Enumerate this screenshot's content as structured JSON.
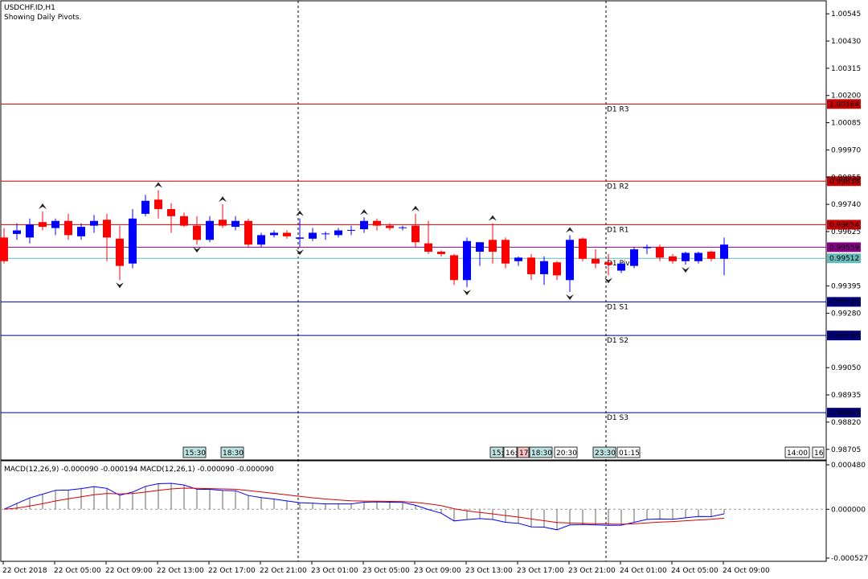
{
  "header": {
    "symbol": "USDCHF.ID,H1",
    "indicator_note": "Showing Daily Pivots."
  },
  "colors": {
    "bull": "#0000ff",
    "bear": "#ff0000",
    "resistance": "#cc0000",
    "support": "#000080",
    "pivot": "#66bbbb",
    "ma_line": "#880088",
    "macd_line": "#0000ff",
    "signal_line": "#dd0000"
  },
  "price_axis": {
    "labels": [
      "1.00545",
      "1.00430",
      "1.00315",
      "1.00200",
      "1.00085",
      "0.99970",
      "0.99855",
      "0.99740",
      "0.99625",
      "0.99395",
      "0.99280",
      "0.99050",
      "0.98935",
      "0.98820",
      "0.98705"
    ],
    "min": 0.9866,
    "max": 1.006
  },
  "pivots": [
    {
      "id": "r3",
      "label": "D1 R3",
      "price": 1.00164,
      "tag": "1.00164",
      "kind": "resistance"
    },
    {
      "id": "r2",
      "label": "D1 R2",
      "price": 0.99838,
      "tag": "0.99838",
      "kind": "resistance"
    },
    {
      "id": "r1",
      "label": "D1 R1",
      "price": 0.99654,
      "tag": "0.99654",
      "kind": "resistance"
    },
    {
      "id": "pivot",
      "label": "D1 Pivot",
      "price": 0.99512,
      "tag": "0.99512",
      "kind": "pivot"
    },
    {
      "id": "s1",
      "label": "D1 S1",
      "price": 0.99328,
      "tag": "0.99328",
      "kind": "support"
    },
    {
      "id": "s2",
      "label": "D1 S2",
      "price": 0.99186,
      "tag": "0.99186",
      "kind": "support"
    },
    {
      "id": "s3",
      "label": "D1 S3",
      "price": 0.9886,
      "tag": "0.98860",
      "kind": "support"
    }
  ],
  "moving_average": {
    "price": 0.99559,
    "tag": "0.99559"
  },
  "session_markers": [
    {
      "text": "15:30",
      "style": "teal"
    },
    {
      "text": "18:30",
      "style": "teal"
    },
    {
      "text": "15:",
      "style": "teal"
    },
    {
      "text": "16:",
      "style": "plain"
    },
    {
      "text": "17:",
      "style": "pink"
    },
    {
      "text": "18:30",
      "style": "teal"
    },
    {
      "text": "20:30",
      "style": "plain"
    },
    {
      "text": "23:30",
      "style": "teal"
    },
    {
      "text": "01:15",
      "style": "plain"
    },
    {
      "text": "14:00",
      "style": "plain"
    },
    {
      "text": "16",
      "style": "plain"
    }
  ],
  "chart_data": {
    "type": "candlestick",
    "timeframe": "H1",
    "candles": [
      {
        "o": 0.996,
        "h": 0.9964,
        "l": 0.9949,
        "c": 0.995
      },
      {
        "o": 0.99615,
        "h": 0.9966,
        "l": 0.9959,
        "c": 0.9963
      },
      {
        "o": 0.996,
        "h": 0.9968,
        "l": 0.99575,
        "c": 0.99655
      },
      {
        "o": 0.99665,
        "h": 0.9971,
        "l": 0.9963,
        "c": 0.99645
      },
      {
        "o": 0.9964,
        "h": 0.9968,
        "l": 0.9961,
        "c": 0.9967
      },
      {
        "o": 0.9967,
        "h": 0.997,
        "l": 0.9959,
        "c": 0.9961
      },
      {
        "o": 0.99605,
        "h": 0.9966,
        "l": 0.9959,
        "c": 0.99645
      },
      {
        "o": 0.9965,
        "h": 0.99695,
        "l": 0.9962,
        "c": 0.9967
      },
      {
        "o": 0.99675,
        "h": 0.997,
        "l": 0.995,
        "c": 0.996
      },
      {
        "o": 0.99595,
        "h": 0.9965,
        "l": 0.9942,
        "c": 0.9948
      },
      {
        "o": 0.9949,
        "h": 0.9972,
        "l": 0.9947,
        "c": 0.9968
      },
      {
        "o": 0.997,
        "h": 0.9978,
        "l": 0.9969,
        "c": 0.99755
      },
      {
        "o": 0.9976,
        "h": 0.998,
        "l": 0.9968,
        "c": 0.9972
      },
      {
        "o": 0.9972,
        "h": 0.99745,
        "l": 0.9962,
        "c": 0.9969
      },
      {
        "o": 0.9969,
        "h": 0.99705,
        "l": 0.99645,
        "c": 0.9965
      },
      {
        "o": 0.9965,
        "h": 0.9969,
        "l": 0.9957,
        "c": 0.9959
      },
      {
        "o": 0.9959,
        "h": 0.9969,
        "l": 0.9958,
        "c": 0.9967
      },
      {
        "o": 0.99675,
        "h": 0.9974,
        "l": 0.9964,
        "c": 0.9965
      },
      {
        "o": 0.99645,
        "h": 0.9969,
        "l": 0.9963,
        "c": 0.9967
      },
      {
        "o": 0.9967,
        "h": 0.9968,
        "l": 0.9956,
        "c": 0.9957
      },
      {
        "o": 0.9957,
        "h": 0.9962,
        "l": 0.9956,
        "c": 0.9961
      },
      {
        "o": 0.9961,
        "h": 0.9963,
        "l": 0.996,
        "c": 0.9962
      },
      {
        "o": 0.9962,
        "h": 0.9963,
        "l": 0.99595,
        "c": 0.99605
      },
      {
        "o": 0.99595,
        "h": 0.9968,
        "l": 0.9956,
        "c": 0.996
      },
      {
        "o": 0.99595,
        "h": 0.9964,
        "l": 0.99585,
        "c": 0.9962
      },
      {
        "o": 0.99615,
        "h": 0.99625,
        "l": 0.9959,
        "c": 0.99617
      },
      {
        "o": 0.9961,
        "h": 0.9964,
        "l": 0.996,
        "c": 0.9963
      },
      {
        "o": 0.9963,
        "h": 0.9965,
        "l": 0.9961,
        "c": 0.99632
      },
      {
        "o": 0.99635,
        "h": 0.99685,
        "l": 0.9962,
        "c": 0.9967
      },
      {
        "o": 0.9967,
        "h": 0.9968,
        "l": 0.9963,
        "c": 0.9965
      },
      {
        "o": 0.9965,
        "h": 0.9966,
        "l": 0.9963,
        "c": 0.9964
      },
      {
        "o": 0.9964,
        "h": 0.9965,
        "l": 0.9963,
        "c": 0.99643
      },
      {
        "o": 0.9965,
        "h": 0.997,
        "l": 0.9956,
        "c": 0.9958
      },
      {
        "o": 0.99575,
        "h": 0.9967,
        "l": 0.9953,
        "c": 0.9954
      },
      {
        "o": 0.9954,
        "h": 0.99545,
        "l": 0.9952,
        "c": 0.9953
      },
      {
        "o": 0.99525,
        "h": 0.9953,
        "l": 0.994,
        "c": 0.9942
      },
      {
        "o": 0.9942,
        "h": 0.996,
        "l": 0.9939,
        "c": 0.99585
      },
      {
        "o": 0.9954,
        "h": 0.9958,
        "l": 0.9948,
        "c": 0.9958
      },
      {
        "o": 0.9959,
        "h": 0.9966,
        "l": 0.9949,
        "c": 0.9954
      },
      {
        "o": 0.9959,
        "h": 0.996,
        "l": 0.9947,
        "c": 0.9949
      },
      {
        "o": 0.995,
        "h": 0.9952,
        "l": 0.9948,
        "c": 0.99515
      },
      {
        "o": 0.99515,
        "h": 0.9953,
        "l": 0.9942,
        "c": 0.99445
      },
      {
        "o": 0.99445,
        "h": 0.9952,
        "l": 0.994,
        "c": 0.995
      },
      {
        "o": 0.99495,
        "h": 0.995,
        "l": 0.9942,
        "c": 0.9944
      },
      {
        "o": 0.9942,
        "h": 0.9961,
        "l": 0.9937,
        "c": 0.9959
      },
      {
        "o": 0.99595,
        "h": 0.996,
        "l": 0.995,
        "c": 0.9951
      },
      {
        "o": 0.9951,
        "h": 0.9955,
        "l": 0.9947,
        "c": 0.9949
      },
      {
        "o": 0.99495,
        "h": 0.9953,
        "l": 0.9944,
        "c": 0.99485
      },
      {
        "o": 0.9946,
        "h": 0.9949,
        "l": 0.9945,
        "c": 0.9949
      },
      {
        "o": 0.9948,
        "h": 0.9956,
        "l": 0.9947,
        "c": 0.9955
      },
      {
        "o": 0.99555,
        "h": 0.9957,
        "l": 0.9953,
        "c": 0.9956
      },
      {
        "o": 0.9956,
        "h": 0.9957,
        "l": 0.995,
        "c": 0.99515
      },
      {
        "o": 0.9952,
        "h": 0.9953,
        "l": 0.9949,
        "c": 0.995
      },
      {
        "o": 0.995,
        "h": 0.9954,
        "l": 0.99485,
        "c": 0.99535
      },
      {
        "o": 0.995,
        "h": 0.9954,
        "l": 0.9949,
        "c": 0.99535
      },
      {
        "o": 0.9954,
        "h": 0.99545,
        "l": 0.995,
        "c": 0.9951
      },
      {
        "o": 0.9951,
        "h": 0.996,
        "l": 0.9944,
        "c": 0.9957
      }
    ],
    "macd": {
      "label": "MACD(12,26,9) -0.000090 -0.000194 MACD(12,26,1) -0.000090 -0.000090",
      "levels": [
        "0.000480",
        "0.000000",
        "-0.000527"
      ],
      "min": -0.000527,
      "max": 0.00048
    },
    "time_labels": [
      "22 Oct 2018",
      "22 Oct 05:00",
      "22 Oct 09:00",
      "22 Oct 13:00",
      "22 Oct 17:00",
      "22 Oct 21:00",
      "23 Oct 01:00",
      "23 Oct 05:00",
      "23 Oct 09:00",
      "23 Oct 13:00",
      "23 Oct 17:00",
      "23 Oct 21:00",
      "24 Oct 01:00",
      "24 Oct 05:00",
      "24 Oct 09:00"
    ]
  }
}
